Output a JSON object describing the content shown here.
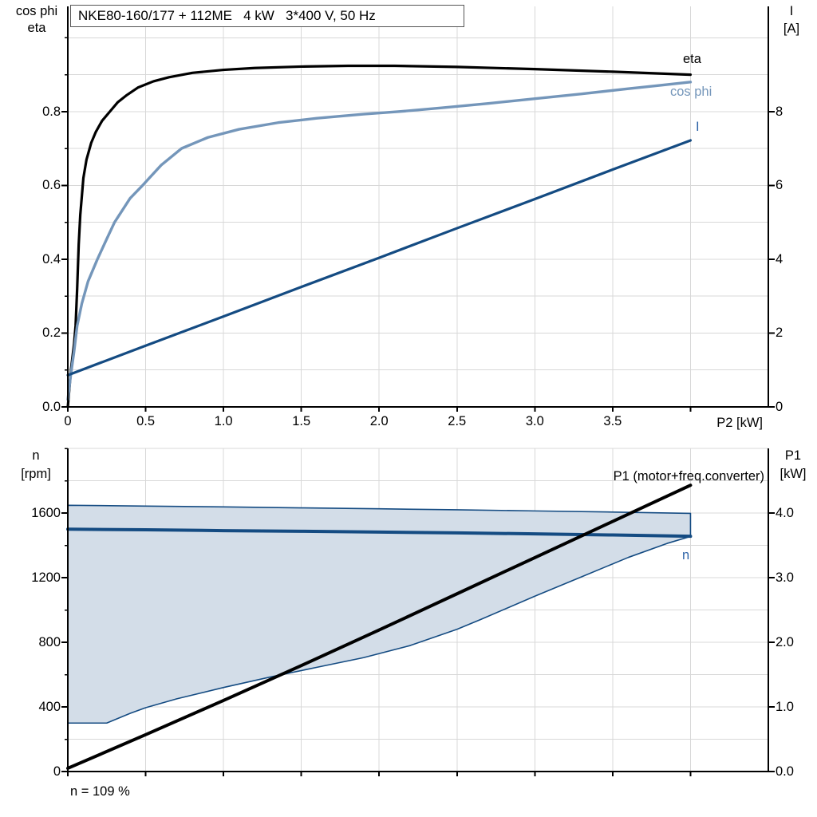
{
  "page": {
    "background": "#FFFFFF"
  },
  "colors": {
    "eta_curve": "#000000",
    "cos_phi_curve": "#7496BA",
    "current_curve": "#144B82",
    "n_curve": "#144B82",
    "band_fill": "#D3DDE8",
    "band_edge": "#144B82",
    "p1_curve": "#000000",
    "grid": "#D8D8D8",
    "axis": "#000000",
    "blue_label": "#2E64A8"
  },
  "top_chart": {
    "title": "NKE80-160/177 + 112ME   4 kW   3*400 V, 50 Hz",
    "y_axis_left_label_line1": "cos phi",
    "y_axis_left_label_line2": "eta",
    "y_axis_right_label_line1": "I",
    "y_axis_right_label_line2": "[A]",
    "x_axis_label": "P2 [kW]",
    "curve_label_eta": "eta",
    "curve_label_cos_phi": "cos phi",
    "curve_label_current": "I"
  },
  "bottom_chart": {
    "y_axis_left_label_line1": "n",
    "y_axis_left_label_line2": "[rpm]",
    "y_axis_right_label_line1": "P1",
    "y_axis_right_label_line2": "[kW]",
    "p1_curve_label": "P1 (motor+freq.converter)",
    "n_curve_label": "n",
    "annotation": "n = 109 %"
  },
  "chart_data": [
    {
      "type": "line",
      "title": "NKE80-160/177 + 112ME   4 kW   3*400 V, 50 Hz",
      "xlabel": "P2 [kW]",
      "ylabel_left": "cos phi / eta",
      "ylabel_right": "I [A]",
      "xlim": [
        0,
        4.5
      ],
      "ylim_left": [
        0,
        1.085
      ],
      "ylim_right": [
        0,
        10.85
      ],
      "grid": true,
      "x_tick_values": [
        0,
        0.5,
        1.0,
        1.5,
        2.0,
        2.5,
        3.0,
        3.5,
        4.0
      ],
      "x_tick_labels": [
        "0",
        "0.5",
        "1.0",
        "1.5",
        "2.0",
        "2.5",
        "3.0",
        "3.5",
        ""
      ],
      "y_tick_values_left": [
        0,
        0.2,
        0.4,
        0.6,
        0.8
      ],
      "y_tick_labels_left": [
        "0.0",
        "0.2",
        "0.4",
        "0.6",
        "0.8"
      ],
      "y_grid_step_left": 0.1,
      "y_grid_max_left": 1.0,
      "y_tick_values_right": [
        0,
        2,
        4,
        6,
        8
      ],
      "y_tick_labels_right": [
        "0",
        "2",
        "4",
        "6",
        "8"
      ],
      "series": [
        {
          "name": "eta",
          "axis": "left",
          "color": "#000000",
          "width": 3.2,
          "points": [
            [
              0,
              0
            ],
            [
              0.02,
              0.1
            ],
            [
              0.04,
              0.17
            ],
            [
              0.05,
              0.22
            ],
            [
              0.06,
              0.32
            ],
            [
              0.07,
              0.44
            ],
            [
              0.08,
              0.52
            ],
            [
              0.1,
              0.62
            ],
            [
              0.12,
              0.67
            ],
            [
              0.15,
              0.715
            ],
            [
              0.18,
              0.745
            ],
            [
              0.22,
              0.775
            ],
            [
              0.27,
              0.8
            ],
            [
              0.32,
              0.825
            ],
            [
              0.38,
              0.845
            ],
            [
              0.45,
              0.865
            ],
            [
              0.55,
              0.882
            ],
            [
              0.65,
              0.893
            ],
            [
              0.8,
              0.905
            ],
            [
              1.0,
              0.913
            ],
            [
              1.2,
              0.918
            ],
            [
              1.5,
              0.922
            ],
            [
              1.8,
              0.924
            ],
            [
              2.1,
              0.924
            ],
            [
              2.5,
              0.921
            ],
            [
              3.0,
              0.915
            ],
            [
              3.5,
              0.908
            ],
            [
              4.0,
              0.9
            ]
          ]
        },
        {
          "name": "cos phi",
          "axis": "left",
          "color": "#7496BA",
          "width": 3.4,
          "points": [
            [
              0,
              0.02
            ],
            [
              0.02,
              0.09
            ],
            [
              0.04,
              0.15
            ],
            [
              0.06,
              0.22
            ],
            [
              0.09,
              0.28
            ],
            [
              0.13,
              0.34
            ],
            [
              0.19,
              0.4
            ],
            [
              0.25,
              0.455
            ],
            [
              0.3,
              0.5
            ],
            [
              0.4,
              0.565
            ],
            [
              0.48,
              0.6
            ],
            [
              0.6,
              0.655
            ],
            [
              0.73,
              0.7
            ],
            [
              0.9,
              0.73
            ],
            [
              1.1,
              0.752
            ],
            [
              1.35,
              0.77
            ],
            [
              1.6,
              0.782
            ],
            [
              1.9,
              0.793
            ],
            [
              2.13,
              0.8
            ],
            [
              2.4,
              0.81
            ],
            [
              2.7,
              0.822
            ],
            [
              3.0,
              0.835
            ],
            [
              3.3,
              0.848
            ],
            [
              3.6,
              0.862
            ],
            [
              3.8,
              0.871
            ],
            [
              4.0,
              0.88
            ]
          ]
        },
        {
          "name": "I",
          "axis": "right",
          "color": "#144B82",
          "width": 3.2,
          "points": [
            [
              0,
              0.86
            ],
            [
              0.5,
              1.66
            ],
            [
              1.0,
              2.45
            ],
            [
              1.5,
              3.25
            ],
            [
              2.0,
              4.04
            ],
            [
              2.5,
              4.84
            ],
            [
              3.0,
              5.63
            ],
            [
              3.5,
              6.43
            ],
            [
              4.0,
              7.22
            ]
          ]
        }
      ]
    },
    {
      "type": "line",
      "title": "",
      "xlabel": "",
      "ylabel_left": "n [rpm]",
      "ylabel_right": "P1 [kW]",
      "xlim": [
        0,
        4.5
      ],
      "ylim_left": [
        0,
        2000
      ],
      "ylim_right": [
        0,
        5
      ],
      "grid": true,
      "annotation": "n = 109 %",
      "x_tick_values": [
        0,
        0.5,
        1.0,
        1.5,
        2.0,
        2.5,
        3.0,
        3.5,
        4.0
      ],
      "x_tick_labels": [
        "",
        "",
        "",
        "",
        "",
        "",
        "",
        "",
        ""
      ],
      "y_tick_values_left": [
        0,
        400,
        800,
        1200,
        1600
      ],
      "y_tick_labels_left": [
        "0",
        "400",
        "800",
        "1200",
        "1600"
      ],
      "y_grid_step_left": 200,
      "y_grid_max_left": 2000,
      "y_tick_values_right": [
        0,
        1,
        2,
        3,
        4
      ],
      "y_tick_labels_right": [
        "0.0",
        "1.0",
        "2.0",
        "3.0",
        "4.0"
      ],
      "band": {
        "fill": "#D3DDE8",
        "edge_color": "#144B82",
        "edge_width": 1.6,
        "axis": "left",
        "upper": [
          [
            0,
            1648
          ],
          [
            0.5,
            1643
          ],
          [
            1.0,
            1638
          ],
          [
            1.5,
            1632
          ],
          [
            2.0,
            1626
          ],
          [
            2.5,
            1620
          ],
          [
            3.0,
            1613
          ],
          [
            3.5,
            1606
          ],
          [
            4.0,
            1598
          ]
        ],
        "lower": [
          [
            0,
            300
          ],
          [
            0.25,
            300
          ],
          [
            0.4,
            360
          ],
          [
            0.5,
            395
          ],
          [
            0.7,
            450
          ],
          [
            1.0,
            520
          ],
          [
            1.3,
            585
          ],
          [
            1.6,
            645
          ],
          [
            1.9,
            705
          ],
          [
            2.2,
            780
          ],
          [
            2.5,
            880
          ],
          [
            2.65,
            940
          ],
          [
            3.0,
            1085
          ],
          [
            3.3,
            1205
          ],
          [
            3.6,
            1325
          ],
          [
            3.85,
            1412
          ],
          [
            4.0,
            1455
          ]
        ]
      },
      "series": [
        {
          "name": "n",
          "axis": "left",
          "color": "#144B82",
          "width": 4,
          "points": [
            [
              0,
              1500
            ],
            [
              0.5,
              1496
            ],
            [
              1.0,
              1491
            ],
            [
              1.5,
              1487
            ],
            [
              2.0,
              1482
            ],
            [
              2.5,
              1477
            ],
            [
              3.0,
              1471
            ],
            [
              3.5,
              1464
            ],
            [
              4.0,
              1456
            ]
          ]
        },
        {
          "name": "P1 (motor+freq.converter)",
          "axis": "right",
          "color": "#000000",
          "width": 4,
          "points": [
            [
              0,
              0.05
            ],
            [
              0.5,
              0.57
            ],
            [
              1.0,
              1.1
            ],
            [
              1.5,
              1.64
            ],
            [
              2.0,
              2.19
            ],
            [
              2.5,
              2.75
            ],
            [
              3.0,
              3.31
            ],
            [
              3.5,
              3.87
            ],
            [
              4.0,
              4.43
            ]
          ]
        }
      ]
    }
  ]
}
